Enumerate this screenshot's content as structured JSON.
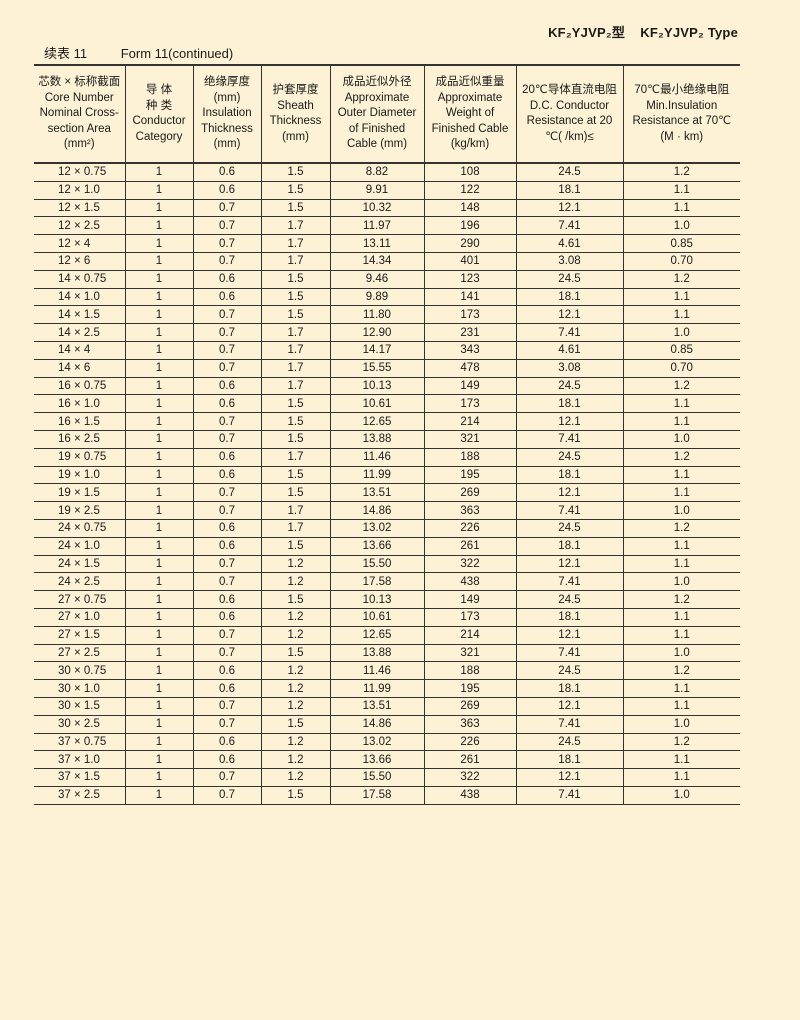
{
  "page": {
    "type_title_cn": "KF₂YJVP₂型",
    "type_title_en": "KF₂YJVP₂ Type",
    "form_cn": "续表 11",
    "form_en": "Form 11(continued)",
    "background_color": "#fdf2d6"
  },
  "table": {
    "headers": [
      [
        "芯数 × 标称截面",
        "Core Number",
        "Nominal Cross-",
        "section Area",
        "(mm²)"
      ],
      [
        "导 体",
        "种 类",
        "Conductor",
        "Category"
      ],
      [
        "绝缘厚度",
        "(mm)",
        "Insulation",
        "Thickness",
        "(mm)"
      ],
      [
        "护套厚度",
        "Sheath",
        "Thickness",
        "(mm)"
      ],
      [
        "成品近似外径",
        "Approximate",
        "Outer Diameter",
        "of Finished",
        "Cable (mm)"
      ],
      [
        "成品近似重量",
        "Approximate",
        "Weight of",
        "Finished Cable",
        "(kg/km)"
      ],
      [
        "20℃导体直流电阻",
        "D.C. Conductor",
        "Resistance at 20",
        "℃(  /km)≤"
      ],
      [
        "70℃最小绝缘电阻",
        "Min.Insulation",
        "Resistance at 70℃",
        "(M    · km)"
      ]
    ],
    "rows": [
      [
        "12 × 0.75",
        "1",
        "0.6",
        "1.5",
        "8.82",
        "108",
        "24.5",
        "1.2"
      ],
      [
        "12 × 1.0",
        "1",
        "0.6",
        "1.5",
        "9.91",
        "122",
        "18.1",
        "1.1"
      ],
      [
        "12 × 1.5",
        "1",
        "0.7",
        "1.5",
        "10.32",
        "148",
        "12.1",
        "1.1"
      ],
      [
        "12 × 2.5",
        "1",
        "0.7",
        "1.7",
        "11.97",
        "196",
        "7.41",
        "1.0"
      ],
      [
        "12 × 4",
        "1",
        "0.7",
        "1.7",
        "13.11",
        "290",
        "4.61",
        "0.85"
      ],
      [
        "12 × 6",
        "1",
        "0.7",
        "1.7",
        "14.34",
        "401",
        "3.08",
        "0.70"
      ],
      [
        "14 × 0.75",
        "1",
        "0.6",
        "1.5",
        "9.46",
        "123",
        "24.5",
        "1.2"
      ],
      [
        "14 × 1.0",
        "1",
        "0.6",
        "1.5",
        "9.89",
        "141",
        "18.1",
        "1.1"
      ],
      [
        "14 × 1.5",
        "1",
        "0.7",
        "1.5",
        "11.80",
        "173",
        "12.1",
        "1.1"
      ],
      [
        "14 × 2.5",
        "1",
        "0.7",
        "1.7",
        "12.90",
        "231",
        "7.41",
        "1.0"
      ],
      [
        "14 × 4",
        "1",
        "0.7",
        "1.7",
        "14.17",
        "343",
        "4.61",
        "0.85"
      ],
      [
        "14 × 6",
        "1",
        "0.7",
        "1.7",
        "15.55",
        "478",
        "3.08",
        "0.70"
      ],
      [
        "16 × 0.75",
        "1",
        "0.6",
        "1.7",
        "10.13",
        "149",
        "24.5",
        "1.2"
      ],
      [
        "16 × 1.0",
        "1",
        "0.6",
        "1.5",
        "10.61",
        "173",
        "18.1",
        "1.1"
      ],
      [
        "16 × 1.5",
        "1",
        "0.7",
        "1.5",
        "12.65",
        "214",
        "12.1",
        "1.1"
      ],
      [
        "16 × 2.5",
        "1",
        "0.7",
        "1.5",
        "13.88",
        "321",
        "7.41",
        "1.0"
      ],
      [
        "19 × 0.75",
        "1",
        "0.6",
        "1.7",
        "11.46",
        "188",
        "24.5",
        "1.2"
      ],
      [
        "19 × 1.0",
        "1",
        "0.6",
        "1.5",
        "11.99",
        "195",
        "18.1",
        "1.1"
      ],
      [
        "19 × 1.5",
        "1",
        "0.7",
        "1.5",
        "13.51",
        "269",
        "12.1",
        "1.1"
      ],
      [
        "19 × 2.5",
        "1",
        "0.7",
        "1.7",
        "14.86",
        "363",
        "7.41",
        "1.0"
      ],
      [
        "24 × 0.75",
        "1",
        "0.6",
        "1.7",
        "13.02",
        "226",
        "24.5",
        "1.2"
      ],
      [
        "24 × 1.0",
        "1",
        "0.6",
        "1.5",
        "13.66",
        "261",
        "18.1",
        "1.1"
      ],
      [
        "24 × 1.5",
        "1",
        "0.7",
        "1.2",
        "15.50",
        "322",
        "12.1",
        "1.1"
      ],
      [
        "24 × 2.5",
        "1",
        "0.7",
        "1.2",
        "17.58",
        "438",
        "7.41",
        "1.0"
      ],
      [
        "27 × 0.75",
        "1",
        "0.6",
        "1.5",
        "10.13",
        "149",
        "24.5",
        "1.2"
      ],
      [
        "27 × 1.0",
        "1",
        "0.6",
        "1.2",
        "10.61",
        "173",
        "18.1",
        "1.1"
      ],
      [
        "27 × 1.5",
        "1",
        "0.7",
        "1.2",
        "12.65",
        "214",
        "12.1",
        "1.1"
      ],
      [
        "27 × 2.5",
        "1",
        "0.7",
        "1.5",
        "13.88",
        "321",
        "7.41",
        "1.0"
      ],
      [
        "30 × 0.75",
        "1",
        "0.6",
        "1.2",
        "11.46",
        "188",
        "24.5",
        "1.2"
      ],
      [
        "30 × 1.0",
        "1",
        "0.6",
        "1.2",
        "11.99",
        "195",
        "18.1",
        "1.1"
      ],
      [
        "30 × 1.5",
        "1",
        "0.7",
        "1.2",
        "13.51",
        "269",
        "12.1",
        "1.1"
      ],
      [
        "30 × 2.5",
        "1",
        "0.7",
        "1.5",
        "14.86",
        "363",
        "7.41",
        "1.0"
      ],
      [
        "37 × 0.75",
        "1",
        "0.6",
        "1.2",
        "13.02",
        "226",
        "24.5",
        "1.2"
      ],
      [
        "37 × 1.0",
        "1",
        "0.6",
        "1.2",
        "13.66",
        "261",
        "18.1",
        "1.1"
      ],
      [
        "37 × 1.5",
        "1",
        "0.7",
        "1.2",
        "15.50",
        "322",
        "12.1",
        "1.1"
      ],
      [
        "37 × 2.5",
        "1",
        "0.7",
        "1.5",
        "17.58",
        "438",
        "7.41",
        "1.0"
      ]
    ]
  }
}
